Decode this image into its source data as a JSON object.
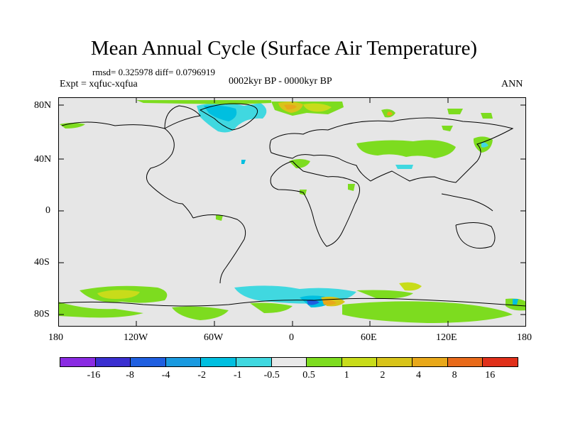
{
  "title": "Mean Annual Cycle (Surface Air Temperature)",
  "stats": "rmsd= 0.325978 diff= 0.0796919",
  "experiment": "Expt = xqfuc-xqfua",
  "period": "0002kyr BP - 0000kyr BP",
  "season": "ANN",
  "map": {
    "lat_ticks": [
      "80N",
      "40N",
      "0",
      "40S",
      "80S"
    ],
    "lon_ticks": [
      "180",
      "120W",
      "60W",
      "0",
      "60E",
      "120E",
      "180"
    ]
  },
  "colorbar": {
    "colors": [
      "#8a2be2",
      "#3a2fd0",
      "#1f5fe0",
      "#1a9ae0",
      "#00bfe0",
      "#40d8e0",
      "#e8e8e8",
      "#7ddc1f",
      "#c8dc1a",
      "#d8c41a",
      "#e8a81a",
      "#e86a1a",
      "#e0301a"
    ],
    "labels": [
      "-16",
      "-8",
      "-4",
      "-2",
      "-1",
      "-0.5",
      "0.5",
      "1",
      "2",
      "4",
      "8",
      "16"
    ]
  }
}
